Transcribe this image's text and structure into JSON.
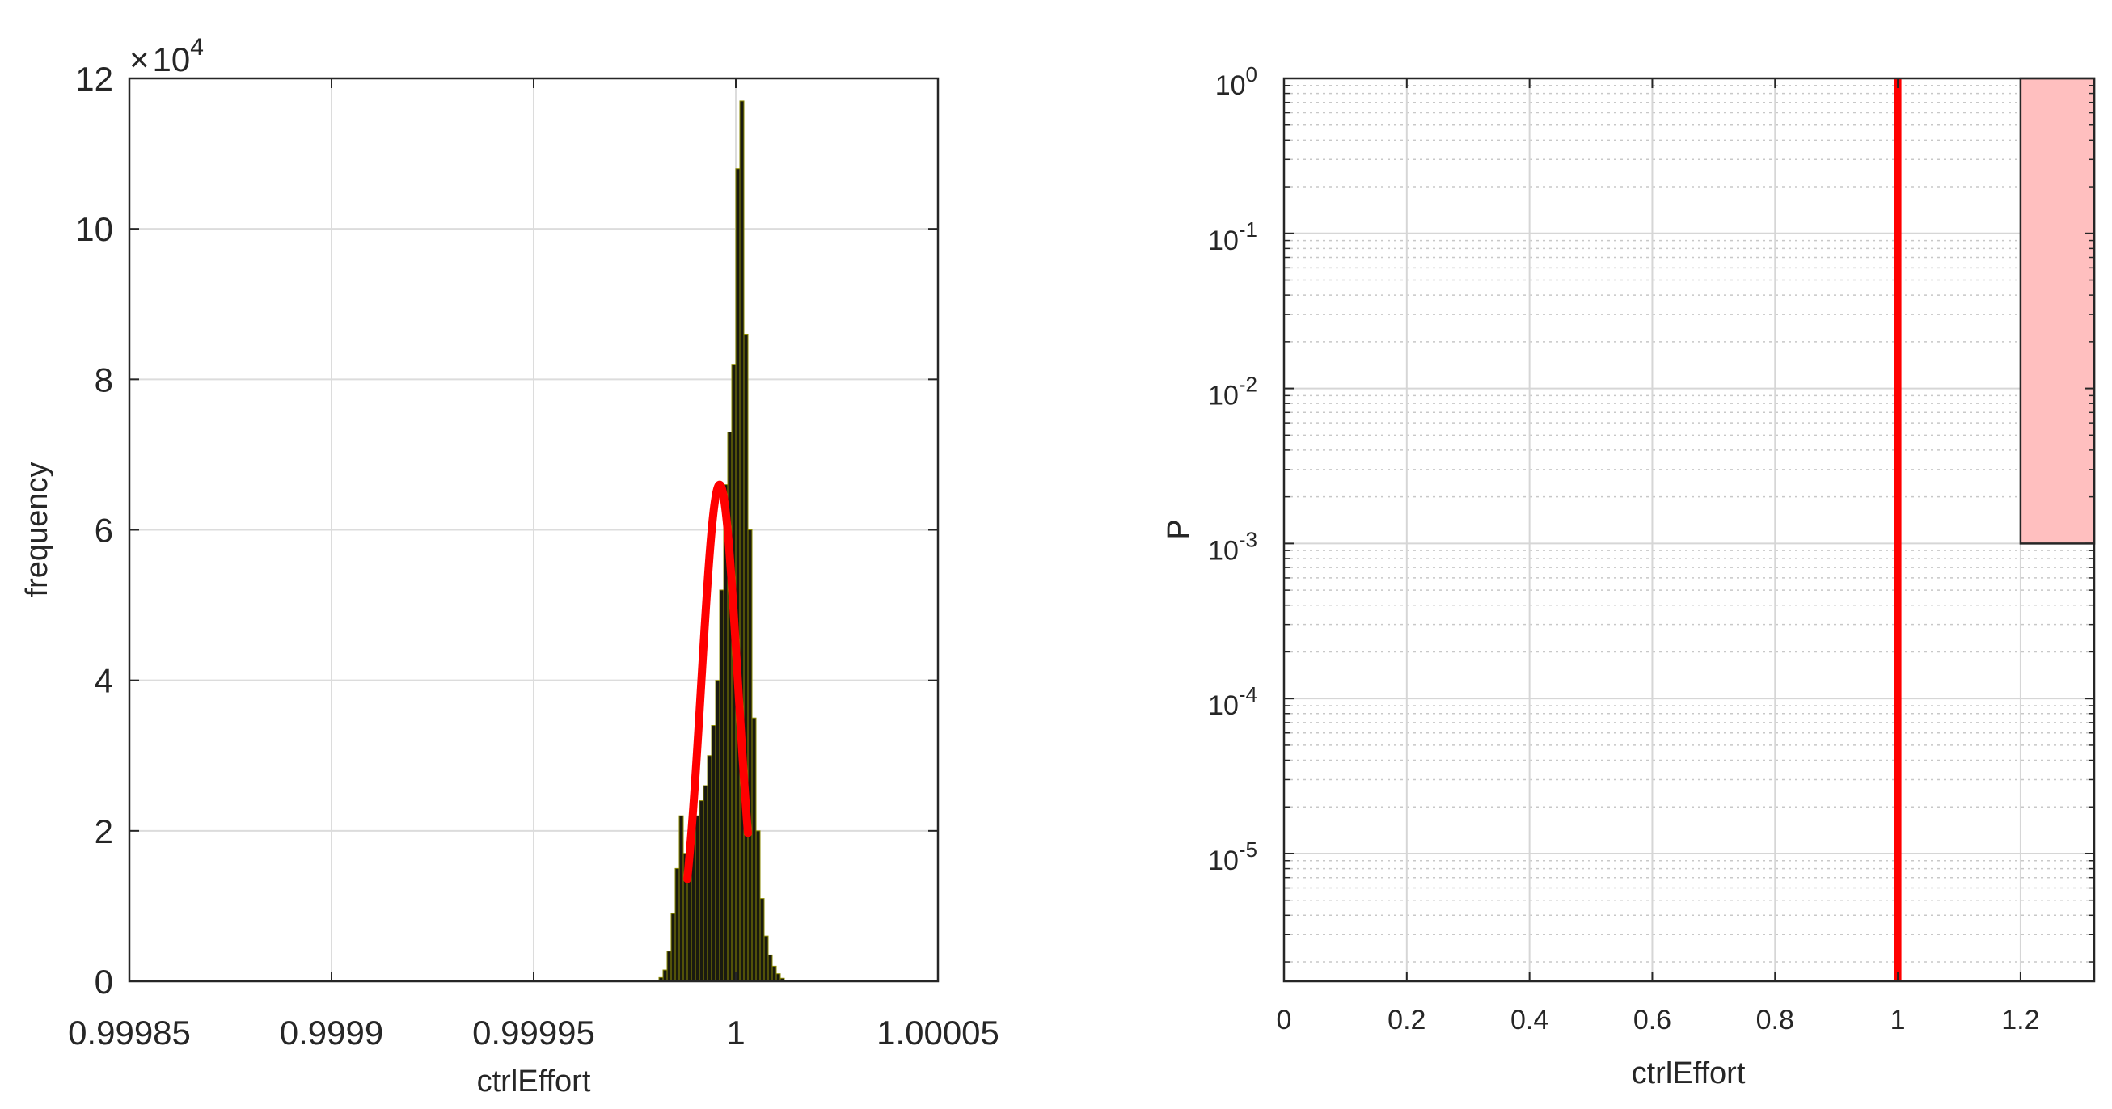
{
  "chart_data": [
    {
      "type": "bar",
      "xlabel": "ctrlEffort",
      "ylabel": "frequency",
      "xlim": [
        0.99985,
        1.00005
      ],
      "ylim": [
        0,
        120000
      ],
      "y_multiplier": {
        "base": "10",
        "exponent": "4",
        "prefix": "×"
      },
      "x_ticks": [
        {
          "v": 0.99985,
          "label": "0.99985"
        },
        {
          "v": 0.9999,
          "label": "0.9999"
        },
        {
          "v": 0.99995,
          "label": "0.99995"
        },
        {
          "v": 1.0,
          "label": "1"
        },
        {
          "v": 1.00005,
          "label": "1.00005"
        }
      ],
      "y_ticks": [
        {
          "v": 0,
          "label": "0"
        },
        {
          "v": 20000,
          "label": "2"
        },
        {
          "v": 40000,
          "label": "4"
        },
        {
          "v": 60000,
          "label": "6"
        },
        {
          "v": 80000,
          "label": "8"
        },
        {
          "v": 100000,
          "label": "10"
        },
        {
          "v": 120000,
          "label": "12"
        }
      ],
      "grid": true,
      "histogram": {
        "bin_edges": [
          0.999981,
          0.999982,
          0.999983,
          0.999984,
          0.999985,
          0.999986,
          0.999987,
          0.999988,
          0.999989,
          0.99999,
          0.999991,
          0.999992,
          0.999993,
          0.999994,
          0.999995,
          0.999996,
          0.999997,
          0.999998,
          0.999999,
          1.0,
          1.000001,
          1.000002,
          1.000003,
          1.000004,
          1.000005,
          1.000006,
          1.000007,
          1.000008,
          1.000009,
          1.00001,
          1.000011,
          1.000012
        ],
        "counts": [
          500,
          1500,
          4000,
          9000,
          15000,
          22000,
          17000,
          19000,
          21000,
          22000,
          24000,
          26000,
          30000,
          34000,
          40000,
          52000,
          66000,
          73000,
          82000,
          108000,
          117000,
          86000,
          60000,
          35000,
          20000,
          11000,
          6000,
          3500,
          2000,
          1000,
          400
        ],
        "fill": "#1a1a10",
        "edge": "#8a8a00"
      },
      "fit_curve": {
        "type": "gaussian",
        "mu": 0.999996,
        "sigma": 4.5e-06,
        "peak": 66000,
        "x_range": [
          0.999988,
          1.000003
        ],
        "color": "#ff0000"
      }
    },
    {
      "type": "line",
      "xlabel": "ctrlEffort",
      "ylabel": "P",
      "xlim": [
        0,
        1.32
      ],
      "ylim": [
        1.5e-06,
        1
      ],
      "yscale": "log",
      "x_ticks": [
        {
          "v": 0,
          "label": "0"
        },
        {
          "v": 0.2,
          "label": "0.2"
        },
        {
          "v": 0.4,
          "label": "0.4"
        },
        {
          "v": 0.6,
          "label": "0.6"
        },
        {
          "v": 0.8,
          "label": "0.8"
        },
        {
          "v": 1.0,
          "label": "1"
        },
        {
          "v": 1.2,
          "label": "1.2"
        }
      ],
      "y_ticks": [
        {
          "v": 1e-05,
          "base": "10",
          "exp": "-5"
        },
        {
          "v": 0.0001,
          "base": "10",
          "exp": "-4"
        },
        {
          "v": 0.001,
          "base": "10",
          "exp": "-3"
        },
        {
          "v": 0.01,
          "base": "10",
          "exp": "-2"
        },
        {
          "v": 0.1,
          "base": "10",
          "exp": "-1"
        },
        {
          "v": 1,
          "base": "10",
          "exp": "0"
        }
      ],
      "grid": true,
      "minor_grid": true,
      "series": [
        {
          "x": [
            1.0,
            1.0
          ],
          "y": [
            1.5e-06,
            1.0
          ],
          "color": "#ff0000"
        }
      ],
      "patch": {
        "x0": 1.2,
        "x1": 1.32,
        "y0": 0.001,
        "y1": 1.0,
        "fill": "#ffbfbf"
      }
    }
  ]
}
